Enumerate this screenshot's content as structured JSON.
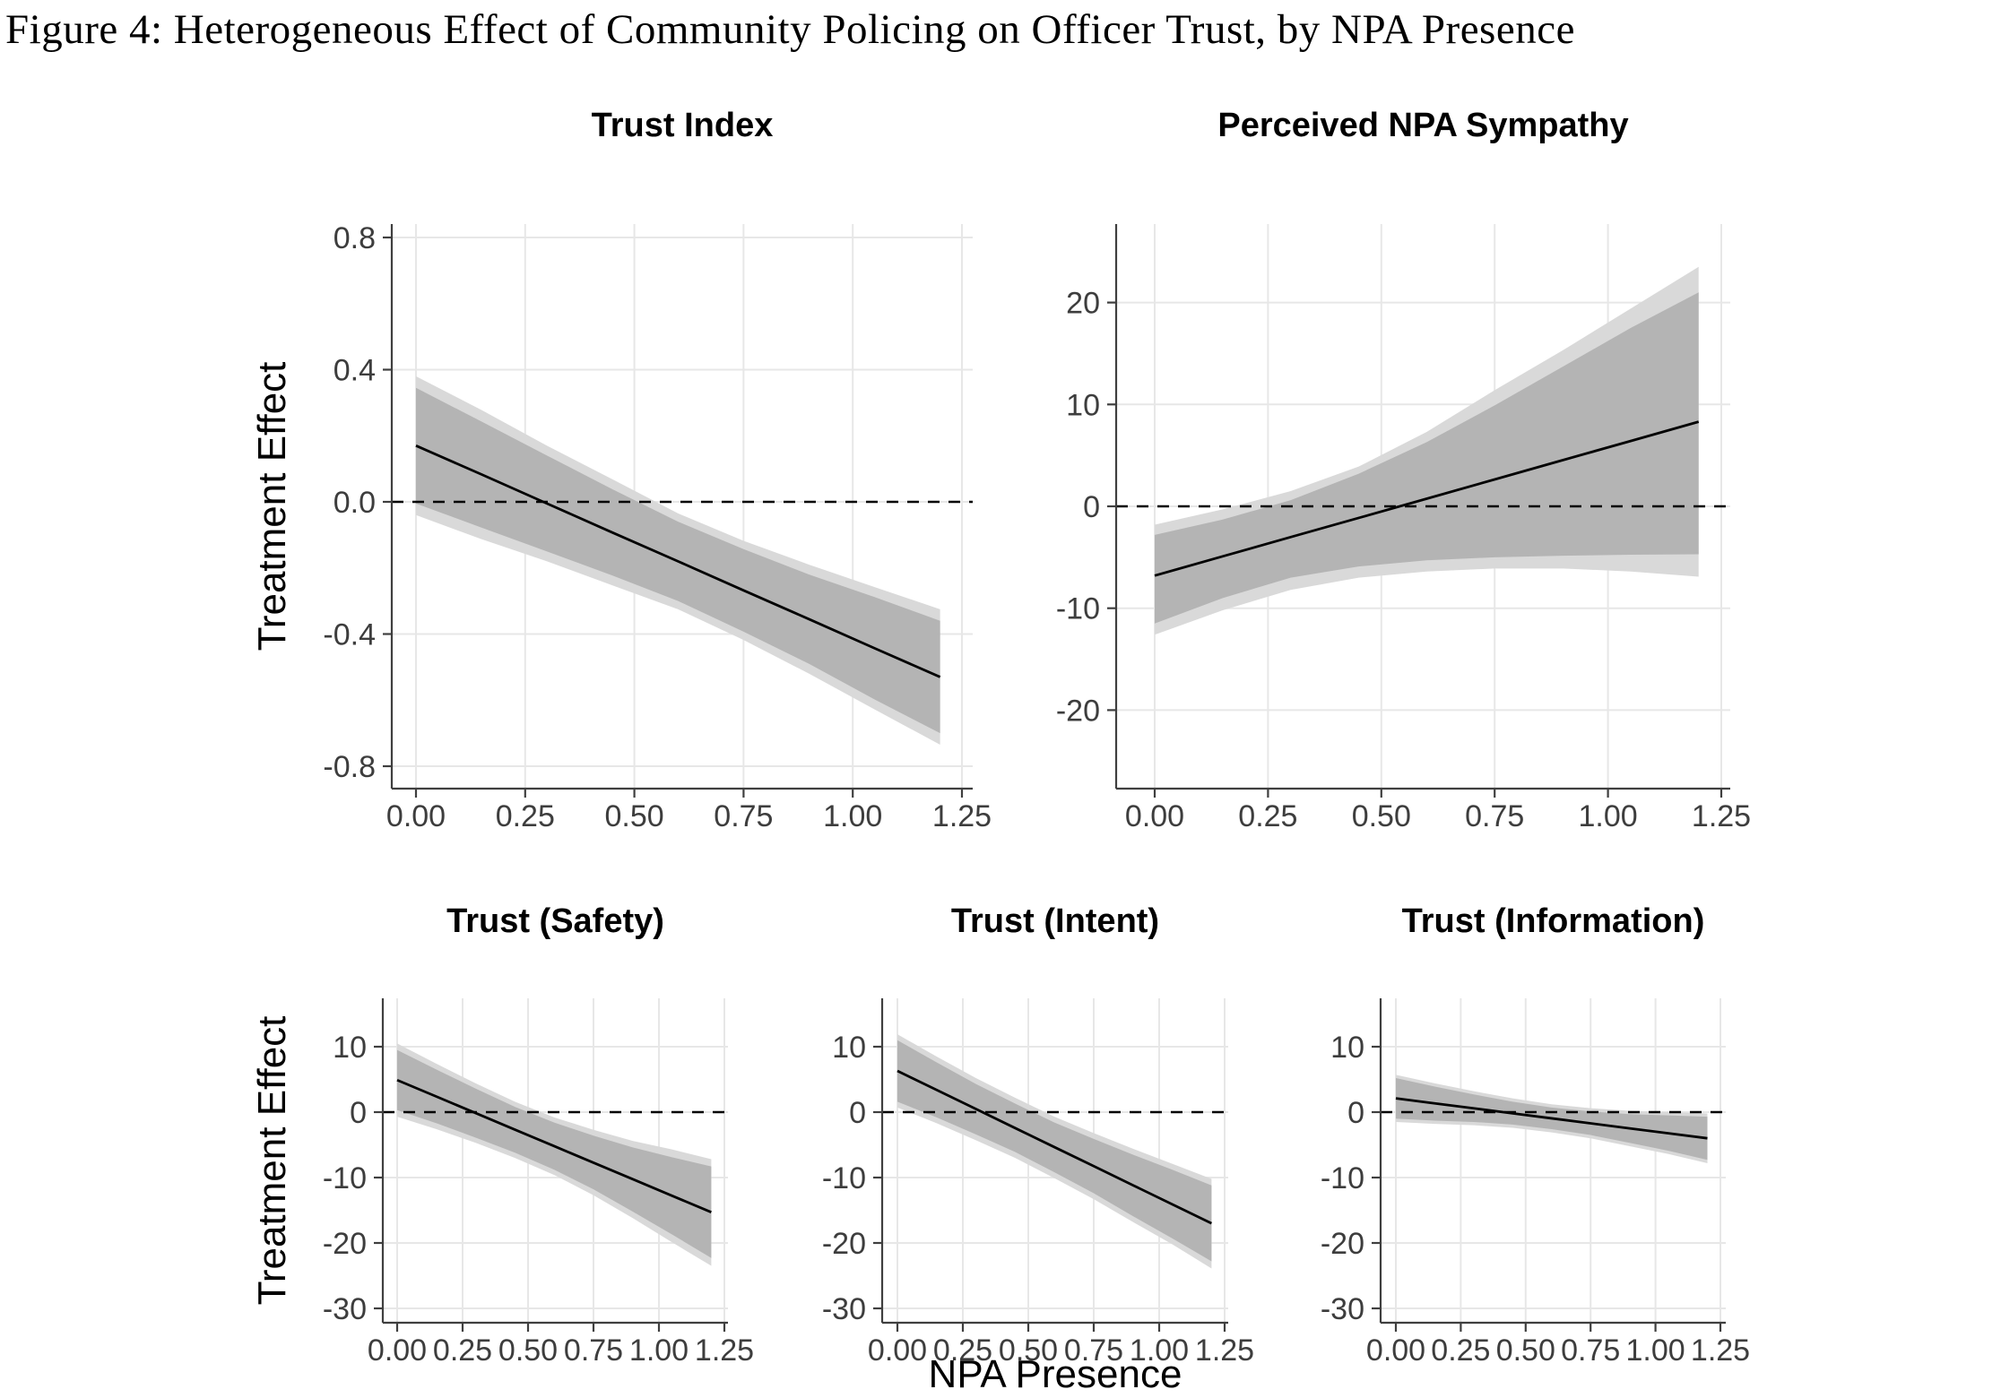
{
  "figure": {
    "title": "Figure 4: Heterogeneous Effect of Community Policing on Officer Trust, by NPA Presence"
  },
  "labels": {
    "y_axis_top": "Treatment Effect",
    "y_axis_bottom": "Treatment Effect",
    "x_axis": "NPA Presence"
  },
  "colors": {
    "background": "#ffffff",
    "grid": "#e7e7e7",
    "axis": "#3f3f3f",
    "tick_text": "#3d3d3d",
    "band_inner": "#b4b4b4",
    "band_outer": "#d9d9d9",
    "trend_line": "#000000",
    "zero_line": "#000000",
    "title_text": "#000000"
  },
  "chart_data": [
    {
      "key": "trust_index",
      "type": "line",
      "title": "Trust Index",
      "xlim": [
        0,
        1.25
      ],
      "ylim": [
        -0.87,
        0.85
      ],
      "x_ticks": {
        "values": [
          0,
          0.25,
          0.5,
          0.75,
          1.0,
          1.25
        ],
        "labels": [
          "0.00",
          "0.25",
          "0.50",
          "0.75",
          "1.00",
          "1.25"
        ]
      },
      "y_ticks": {
        "values": [
          0.8,
          0.4,
          0,
          -0.4,
          -0.8
        ],
        "labels": [
          "0.8",
          "0.4",
          "0.0",
          "-0.4",
          "-0.8"
        ]
      },
      "zero_reference_line": true,
      "x": [
        0,
        0.15,
        0.3,
        0.45,
        0.6,
        0.75,
        0.9,
        1.05,
        1.2
      ],
      "line": [
        0.17,
        0.083,
        -0.005,
        -0.093,
        -0.18,
        -0.268,
        -0.355,
        -0.443,
        -0.53
      ],
      "band_inner": {
        "upper": [
          0.345,
          0.243,
          0.14,
          0.038,
          -0.06,
          -0.143,
          -0.22,
          -0.288,
          -0.36
        ],
        "lower": [
          -0.005,
          -0.078,
          -0.15,
          -0.223,
          -0.3,
          -0.393,
          -0.49,
          -0.598,
          -0.7
        ]
      },
      "band_outer": {
        "upper": [
          0.38,
          0.278,
          0.17,
          0.068,
          -0.035,
          -0.118,
          -0.19,
          -0.258,
          -0.325
        ],
        "lower": [
          -0.04,
          -0.113,
          -0.18,
          -0.253,
          -0.325,
          -0.418,
          -0.52,
          -0.628,
          -0.735
        ]
      }
    },
    {
      "key": "perceived_npa_sympathy",
      "type": "line",
      "title": "Perceived NPA Sympathy",
      "xlim": [
        0,
        1.25
      ],
      "ylim": [
        -27.7,
        27.7
      ],
      "x_ticks": {
        "values": [
          0,
          0.25,
          0.5,
          0.75,
          1.0,
          1.25
        ],
        "labels": [
          "0.00",
          "0.25",
          "0.50",
          "0.75",
          "1.00",
          "1.25"
        ]
      },
      "y_ticks": {
        "values": [
          20,
          10,
          0,
          -10,
          -20
        ],
        "labels": [
          "20",
          "10",
          "0",
          "-10",
          "-20"
        ]
      },
      "zero_reference_line": true,
      "x": [
        0,
        0.15,
        0.3,
        0.45,
        0.6,
        0.75,
        0.9,
        1.05,
        1.2
      ],
      "line": [
        -6.8,
        -4.91,
        -3.02,
        -1.14,
        0.75,
        2.64,
        4.53,
        6.41,
        8.3
      ],
      "band_inner": {
        "upper": [
          -2.8,
          -1.3,
          0.6,
          3.2,
          6.3,
          9.9,
          13.7,
          17.5,
          21.0
        ],
        "lower": [
          -11.5,
          -9.0,
          -7.0,
          -5.9,
          -5.3,
          -5.0,
          -4.85,
          -4.75,
          -4.7
        ]
      },
      "band_outer": {
        "upper": [
          -1.8,
          -0.3,
          1.5,
          3.9,
          7.3,
          11.4,
          15.3,
          19.4,
          23.5
        ],
        "lower": [
          -12.6,
          -10.2,
          -8.2,
          -7.0,
          -6.4,
          -6.1,
          -6.1,
          -6.4,
          -6.9
        ]
      }
    },
    {
      "key": "trust_safety",
      "type": "line",
      "title": "Trust (Safety)",
      "xlim": [
        0,
        1.25
      ],
      "ylim": [
        -32.2,
        17.4
      ],
      "x_ticks": {
        "values": [
          0,
          0.25,
          0.5,
          0.75,
          1.0,
          1.25
        ],
        "labels": [
          "0.00",
          "0.25",
          "0.50",
          "0.75",
          "1.00",
          "1.25"
        ]
      },
      "y_ticks": {
        "values": [
          10,
          0,
          -10,
          -20,
          -30
        ],
        "labels": [
          "10",
          "0",
          "-10",
          "-20",
          "-30"
        ]
      },
      "zero_reference_line": true,
      "x": [
        0,
        0.15,
        0.3,
        0.45,
        0.6,
        0.75,
        0.9,
        1.05,
        1.2
      ],
      "line": [
        4.9,
        2.38,
        -0.15,
        -2.68,
        -5.2,
        -7.73,
        -10.25,
        -12.78,
        -15.3
      ],
      "band_inner": {
        "upper": [
          9.5,
          6.5,
          3.6,
          0.8,
          -1.6,
          -3.6,
          -5.4,
          -6.9,
          -8.3
        ],
        "lower": [
          0.3,
          -1.7,
          -3.9,
          -6.2,
          -8.8,
          -11.8,
          -15.2,
          -18.7,
          -22.3
        ]
      },
      "band_outer": {
        "upper": [
          10.5,
          7.4,
          4.4,
          1.6,
          -0.8,
          -2.7,
          -4.4,
          -5.7,
          -7.2
        ],
        "lower": [
          -0.7,
          -2.6,
          -4.7,
          -7.0,
          -9.6,
          -12.7,
          -16.2,
          -19.9,
          -23.5
        ]
      }
    },
    {
      "key": "trust_intent",
      "type": "line",
      "title": "Trust (Intent)",
      "xlim": [
        0,
        1.25
      ],
      "ylim": [
        -32.2,
        17.4
      ],
      "x_ticks": {
        "values": [
          0,
          0.25,
          0.5,
          0.75,
          1.0,
          1.25
        ],
        "labels": [
          "0.00",
          "0.25",
          "0.50",
          "0.75",
          "1.00",
          "1.25"
        ]
      },
      "y_ticks": {
        "values": [
          10,
          0,
          -10,
          -20,
          -30
        ],
        "labels": [
          "10",
          "0",
          "-10",
          "-20",
          "-30"
        ]
      },
      "zero_reference_line": true,
      "x": [
        0,
        0.15,
        0.3,
        0.45,
        0.6,
        0.75,
        0.9,
        1.05,
        1.2
      ],
      "line": [
        6.3,
        3.39,
        0.48,
        -2.44,
        -5.35,
        -8.26,
        -11.18,
        -14.09,
        -17.0
      ],
      "band_inner": {
        "upper": [
          11.0,
          7.6,
          4.3,
          1.3,
          -1.6,
          -4.1,
          -6.5,
          -8.8,
          -11.2
        ],
        "lower": [
          1.6,
          -0.8,
          -3.4,
          -6.1,
          -9.2,
          -12.4,
          -15.9,
          -19.3,
          -22.8
        ]
      },
      "band_outer": {
        "upper": [
          11.9,
          8.5,
          5.2,
          2.2,
          -0.7,
          -3.2,
          -5.6,
          -7.9,
          -10.2
        ],
        "lower": [
          0.7,
          -1.7,
          -4.3,
          -7.0,
          -10.1,
          -13.3,
          -16.8,
          -20.2,
          -23.9
        ]
      }
    },
    {
      "key": "trust_information",
      "type": "line",
      "title": "Trust (Information)",
      "xlim": [
        0,
        1.25
      ],
      "ylim": [
        -32.2,
        17.4
      ],
      "x_ticks": {
        "values": [
          0,
          0.25,
          0.5,
          0.75,
          1.0,
          1.25
        ],
        "labels": [
          "0.00",
          "0.25",
          "0.50",
          "0.75",
          "1.00",
          "1.25"
        ]
      },
      "y_ticks": {
        "values": [
          10,
          0,
          -10,
          -20,
          -30
        ],
        "labels": [
          "10",
          "0",
          "-10",
          "-20",
          "-30"
        ]
      },
      "zero_reference_line": true,
      "x": [
        0,
        0.15,
        0.3,
        0.45,
        0.6,
        0.75,
        0.9,
        1.05,
        1.2
      ],
      "line": [
        2.1,
        1.34,
        0.58,
        -0.19,
        -0.95,
        -1.71,
        -2.48,
        -3.24,
        -4.0
      ],
      "band_inner": {
        "upper": [
          5.2,
          3.9,
          2.7,
          1.6,
          0.7,
          0.1,
          -0.3,
          -0.5,
          -0.7
        ],
        "lower": [
          -1.0,
          -1.3,
          -1.5,
          -1.9,
          -2.6,
          -3.5,
          -4.7,
          -5.9,
          -7.3
        ]
      },
      "band_outer": {
        "upper": [
          5.7,
          4.4,
          3.2,
          2.1,
          1.2,
          0.6,
          0.2,
          0.0,
          -0.2
        ],
        "lower": [
          -1.5,
          -1.8,
          -2.0,
          -2.4,
          -3.1,
          -4.0,
          -5.2,
          -6.4,
          -7.8
        ]
      }
    }
  ]
}
